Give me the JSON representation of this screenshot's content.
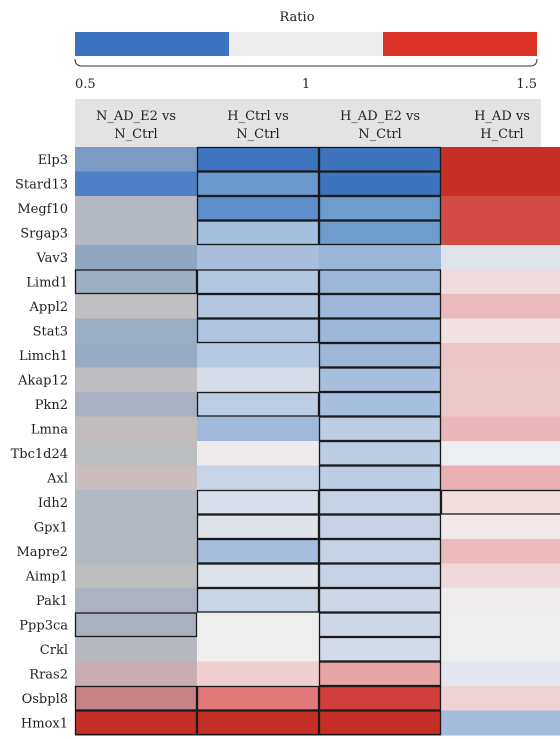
{
  "chart_data": {
    "type": "heatmap",
    "title": "",
    "legend": {
      "title": "Ratio",
      "colors": [
        "#3b73c0",
        "#ececec",
        "#dc3328"
      ],
      "tick_labels": [
        "0.5",
        "1",
        "1.5"
      ],
      "range": [
        0.5,
        1.5
      ]
    },
    "columns": [
      {
        "line1": "N_AD_E2 vs",
        "line2": "N_Ctrl"
      },
      {
        "line1": "H_Ctrl vs",
        "line2": "N_Ctrl"
      },
      {
        "line1": "H_AD_E2 vs",
        "line2": "N_Ctrl"
      },
      {
        "line1": "H_AD vs",
        "line2": "H_Ctrl"
      }
    ],
    "rows": [
      "Elp3",
      "Stard13",
      "Megf10",
      "Srgap3",
      "Vav3",
      "Limd1",
      "Appl2",
      "Stat3",
      "Limch1",
      "Akap12",
      "Pkn2",
      "Lmna",
      "Tbc1d24",
      "Axl",
      "Idh2",
      "Gpx1",
      "Mapre2",
      "Aimp1",
      "Pak1",
      "Ppp3ca",
      "Crkl",
      "Rras2",
      "Osbpl8",
      "Hmox1"
    ],
    "cells": [
      [
        {
          "c": "#7b9bc4",
          "o": false
        },
        {
          "c": "#3f74c0",
          "o": true
        },
        {
          "c": "#3e73be",
          "o": true
        },
        {
          "c": "#c52f25",
          "o": false
        }
      ],
      [
        {
          "c": "#4f80c6",
          "o": false
        },
        {
          "c": "#6b98cc",
          "o": true
        },
        {
          "c": "#3e73be",
          "o": true
        },
        {
          "c": "#c52f25",
          "o": false
        }
      ],
      [
        {
          "c": "#b4b9c4",
          "o": false
        },
        {
          "c": "#5f8ecb",
          "o": true
        },
        {
          "c": "#6e9ccd",
          "o": true
        },
        {
          "c": "#d44a45",
          "o": false
        }
      ],
      [
        {
          "c": "#b4b9c4",
          "o": false
        },
        {
          "c": "#a5bfde",
          "o": true
        },
        {
          "c": "#6e9ccd",
          "o": true
        },
        {
          "c": "#d44a45",
          "o": false
        }
      ],
      [
        {
          "c": "#8fa6c3",
          "o": false
        },
        {
          "c": "#a8bedc",
          "o": false
        },
        {
          "c": "#98b5d8",
          "o": false
        },
        {
          "c": "#dfe3ea",
          "o": false
        }
      ],
      [
        {
          "c": "#9fafc2",
          "o": true
        },
        {
          "c": "#b4c7e0",
          "o": true
        },
        {
          "c": "#9cb7d9",
          "o": true
        },
        {
          "c": "#efdbdd",
          "o": false
        }
      ],
      [
        {
          "c": "#bfbfc2",
          "o": false
        },
        {
          "c": "#b4c7e0",
          "o": true
        },
        {
          "c": "#9cb7d9",
          "o": true
        },
        {
          "c": "#ebbabc",
          "o": false
        }
      ],
      [
        {
          "c": "#9caec3",
          "o": false
        },
        {
          "c": "#b0c4df",
          "o": true
        },
        {
          "c": "#9cb7d9",
          "o": true
        },
        {
          "c": "#f0e2e4",
          "o": false
        }
      ],
      [
        {
          "c": "#98abc3",
          "o": false
        },
        {
          "c": "#b5c7e1",
          "o": false
        },
        {
          "c": "#9cb7d9",
          "o": true
        },
        {
          "c": "#ecc4c6",
          "o": false
        }
      ],
      [
        {
          "c": "#bdbcbe",
          "o": false
        },
        {
          "c": "#d6dce7",
          "o": false
        },
        {
          "c": "#a6bfde",
          "o": true
        },
        {
          "c": "#ecc9ca",
          "o": false
        }
      ],
      [
        {
          "c": "#a9b1c0",
          "o": false
        },
        {
          "c": "#bfcde2",
          "o": true
        },
        {
          "c": "#a6bfde",
          "o": true
        },
        {
          "c": "#ecc9ca",
          "o": false
        }
      ],
      [
        {
          "c": "#c3bcbf",
          "o": false
        },
        {
          "c": "#9fb8dc",
          "o": false
        },
        {
          "c": "#bccde3",
          "o": true
        },
        {
          "c": "#ebb6b9",
          "o": false
        }
      ],
      [
        {
          "c": "#bcbdc1",
          "o": false
        },
        {
          "c": "#eee9ea",
          "o": false
        },
        {
          "c": "#bccde3",
          "o": true
        },
        {
          "c": "#eceef1",
          "o": false
        }
      ],
      [
        {
          "c": "#c9bcbd",
          "o": false
        },
        {
          "c": "#c8d4e5",
          "o": false
        },
        {
          "c": "#bccde3",
          "o": true
        },
        {
          "c": "#e9afb2",
          "o": false
        }
      ],
      [
        {
          "c": "#b3b9c3",
          "o": false
        },
        {
          "c": "#d9dfea",
          "o": true
        },
        {
          "c": "#c7d3e4",
          "o": true
        },
        {
          "c": "#f1dedf",
          "o": true
        }
      ],
      [
        {
          "c": "#b3b9c3",
          "o": false
        },
        {
          "c": "#dde2eb",
          "o": true
        },
        {
          "c": "#c7d3e4",
          "o": true
        },
        {
          "c": "#f2e8ea",
          "o": false
        }
      ],
      [
        {
          "c": "#b3b9c3",
          "o": false
        },
        {
          "c": "#a6bddd",
          "o": true
        },
        {
          "c": "#c7d3e4",
          "o": true
        },
        {
          "c": "#ecbabd",
          "o": false
        }
      ],
      [
        {
          "c": "#bdbdbf",
          "o": false
        },
        {
          "c": "#dde2eb",
          "o": true
        },
        {
          "c": "#c7d3e4",
          "o": true
        },
        {
          "c": "#efd9db",
          "o": false
        }
      ],
      [
        {
          "c": "#acb2c0",
          "o": false
        },
        {
          "c": "#c9d4e4",
          "o": true
        },
        {
          "c": "#cfd8e7",
          "o": true
        },
        {
          "c": "#efecee",
          "o": false
        }
      ],
      [
        {
          "c": "#a8b2bf",
          "o": true
        },
        {
          "c": "#eeeeef",
          "o": false
        },
        {
          "c": "#cfd8e7",
          "o": true
        },
        {
          "c": "#eeeeef",
          "o": false
        }
      ],
      [
        {
          "c": "#b6b9bf",
          "o": false
        },
        {
          "c": "#eeeeef",
          "o": false
        },
        {
          "c": "#d3dbe8",
          "o": true
        },
        {
          "c": "#eeeeef",
          "o": false
        }
      ],
      [
        {
          "c": "#c9aeb1",
          "o": false
        },
        {
          "c": "#f0cfd1",
          "o": false
        },
        {
          "c": "#e7a5a6",
          "o": true
        },
        {
          "c": "#e3e6ee",
          "o": false
        }
      ],
      [
        {
          "c": "#c68489",
          "o": true
        },
        {
          "c": "#e1797b",
          "o": true
        },
        {
          "c": "#d13f3d",
          "o": true
        },
        {
          "c": "#efd2d4",
          "o": false
        }
      ],
      [
        {
          "c": "#c52f25",
          "o": true
        },
        {
          "c": "#c52f25",
          "o": true
        },
        {
          "c": "#c52f25",
          "o": true
        },
        {
          "c": "#a4bcdc",
          "o": false
        }
      ]
    ]
  }
}
